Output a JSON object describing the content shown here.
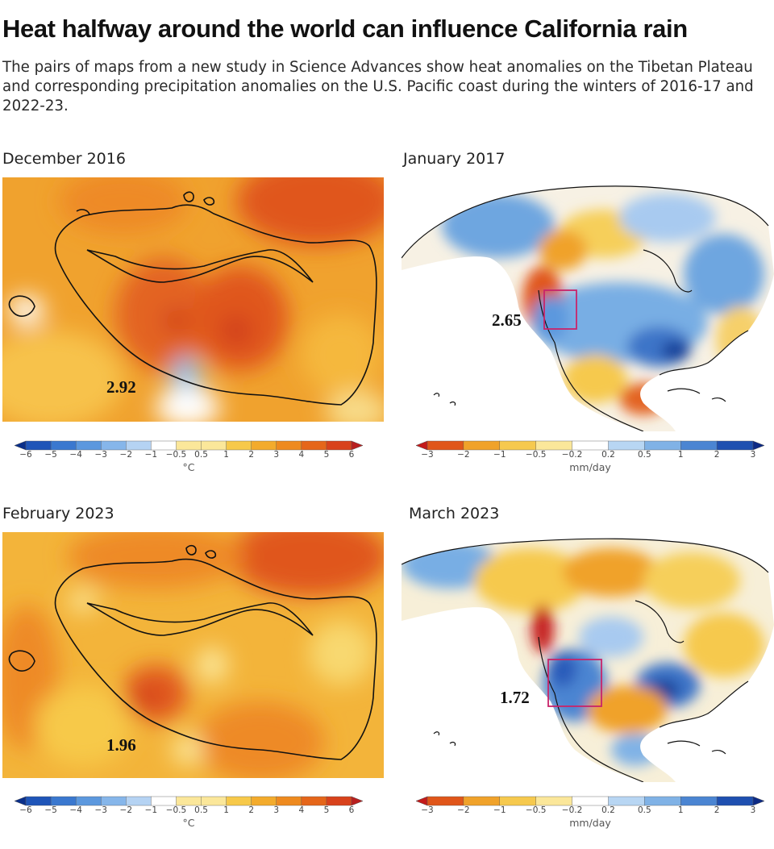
{
  "header": {
    "title": "Heat halfway around the world can influence California rain",
    "description": "The pairs of maps from a new study in Science Advances show heat anomalies on the Tibetan Plateau and corresponding precipitation anomalies on the U.S. Pacific coast during the winters of 2016-17 and 2022-23."
  },
  "panels": {
    "tibet_2016": {
      "label": "December 2016",
      "value": "2.92"
    },
    "na_2017": {
      "label": "January 2017",
      "value": "2.65"
    },
    "tibet_2023": {
      "label": "February 2023",
      "value": "1.96"
    },
    "na_2023": {
      "label": "March 2023",
      "value": "1.72"
    }
  },
  "colorbars": {
    "temperature": {
      "unit": "°C",
      "ticks": [
        "−6",
        "−5",
        "−4",
        "−3",
        "−2",
        "−1",
        "−0.5",
        "0.5",
        "1",
        "2",
        "3",
        "4",
        "5",
        "6"
      ],
      "colors": [
        "#0a2f8a",
        "#1f55b8",
        "#3a78cf",
        "#5c98de",
        "#86b6ea",
        "#b5d3f3",
        "#ffffff",
        "#fbe79a",
        "#f7c94a",
        "#f3ab2c",
        "#ee8a1f",
        "#e5661a",
        "#d8421c",
        "#b81f1f"
      ]
    },
    "precipitation": {
      "unit": "mm/day",
      "ticks": [
        "−3",
        "−2",
        "−1",
        "−0.5",
        "−0.2",
        "0.2",
        "0.5",
        "1",
        "2",
        "3"
      ],
      "colors": [
        "#c41a1a",
        "#e0561a",
        "#f0a22a",
        "#f6c94e",
        "#fbe79a",
        "#ffffff",
        "#b8d6f3",
        "#80b2e6",
        "#4b85d2",
        "#1f50b0",
        "#0d2a85"
      ]
    }
  }
}
